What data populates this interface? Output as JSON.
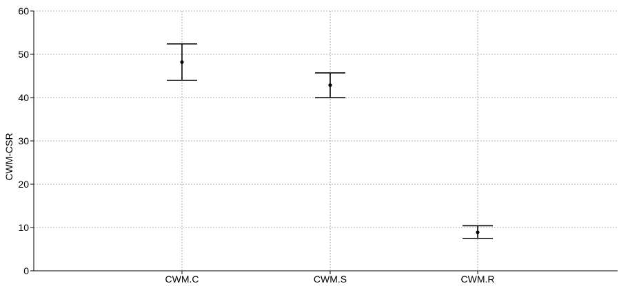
{
  "chart_data": {
    "type": "errorbar",
    "ylabel": "CWM-CSR",
    "xlabel": "",
    "categories": [
      "CWM.C",
      "CWM.S",
      "CWM.R"
    ],
    "values": [
      48.2,
      42.9,
      8.9
    ],
    "error_low": [
      44.0,
      40.0,
      7.5
    ],
    "error_high": [
      52.4,
      45.7,
      10.4
    ],
    "ylim": [
      0,
      60
    ],
    "yticks": [
      0,
      10,
      20,
      30,
      40,
      50,
      60
    ],
    "grid": true,
    "colors": {
      "marks": "#000000",
      "grid": "#9a9a9a",
      "axis": "#000000"
    }
  }
}
